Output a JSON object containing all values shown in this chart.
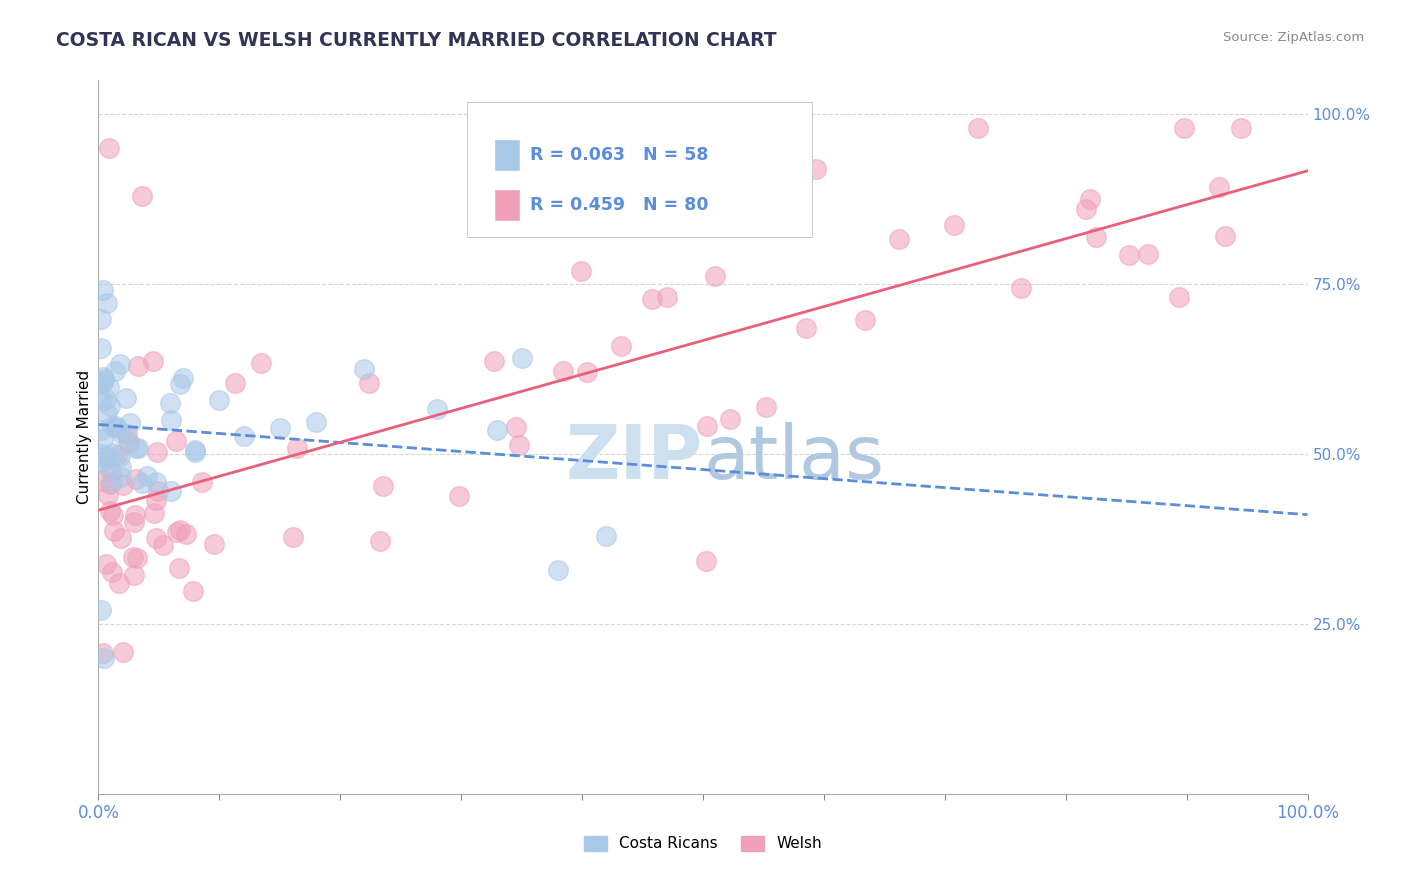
{
  "title": "COSTA RICAN VS WELSH CURRENTLY MARRIED CORRELATION CHART",
  "source": "Source: ZipAtlas.com",
  "ylabel": "Currently Married",
  "legend_labels": [
    "Costa Ricans",
    "Welsh"
  ],
  "blue_R": 0.063,
  "blue_N": 58,
  "pink_R": 0.459,
  "pink_N": 80,
  "blue_color": "#a8c8e8",
  "pink_color": "#f0a0b8",
  "blue_line_color": "#5b8dd9",
  "pink_line_color": "#e8607a",
  "background_color": "#ffffff",
  "grid_color": "#cccccc",
  "title_color": "#333355",
  "right_axis_tick_color": "#5b8dd9",
  "xaxis_label_color": "#5b8dd9",
  "watermark_zip_color": "#cce0f0",
  "watermark_atlas_color": "#b0c8e0"
}
